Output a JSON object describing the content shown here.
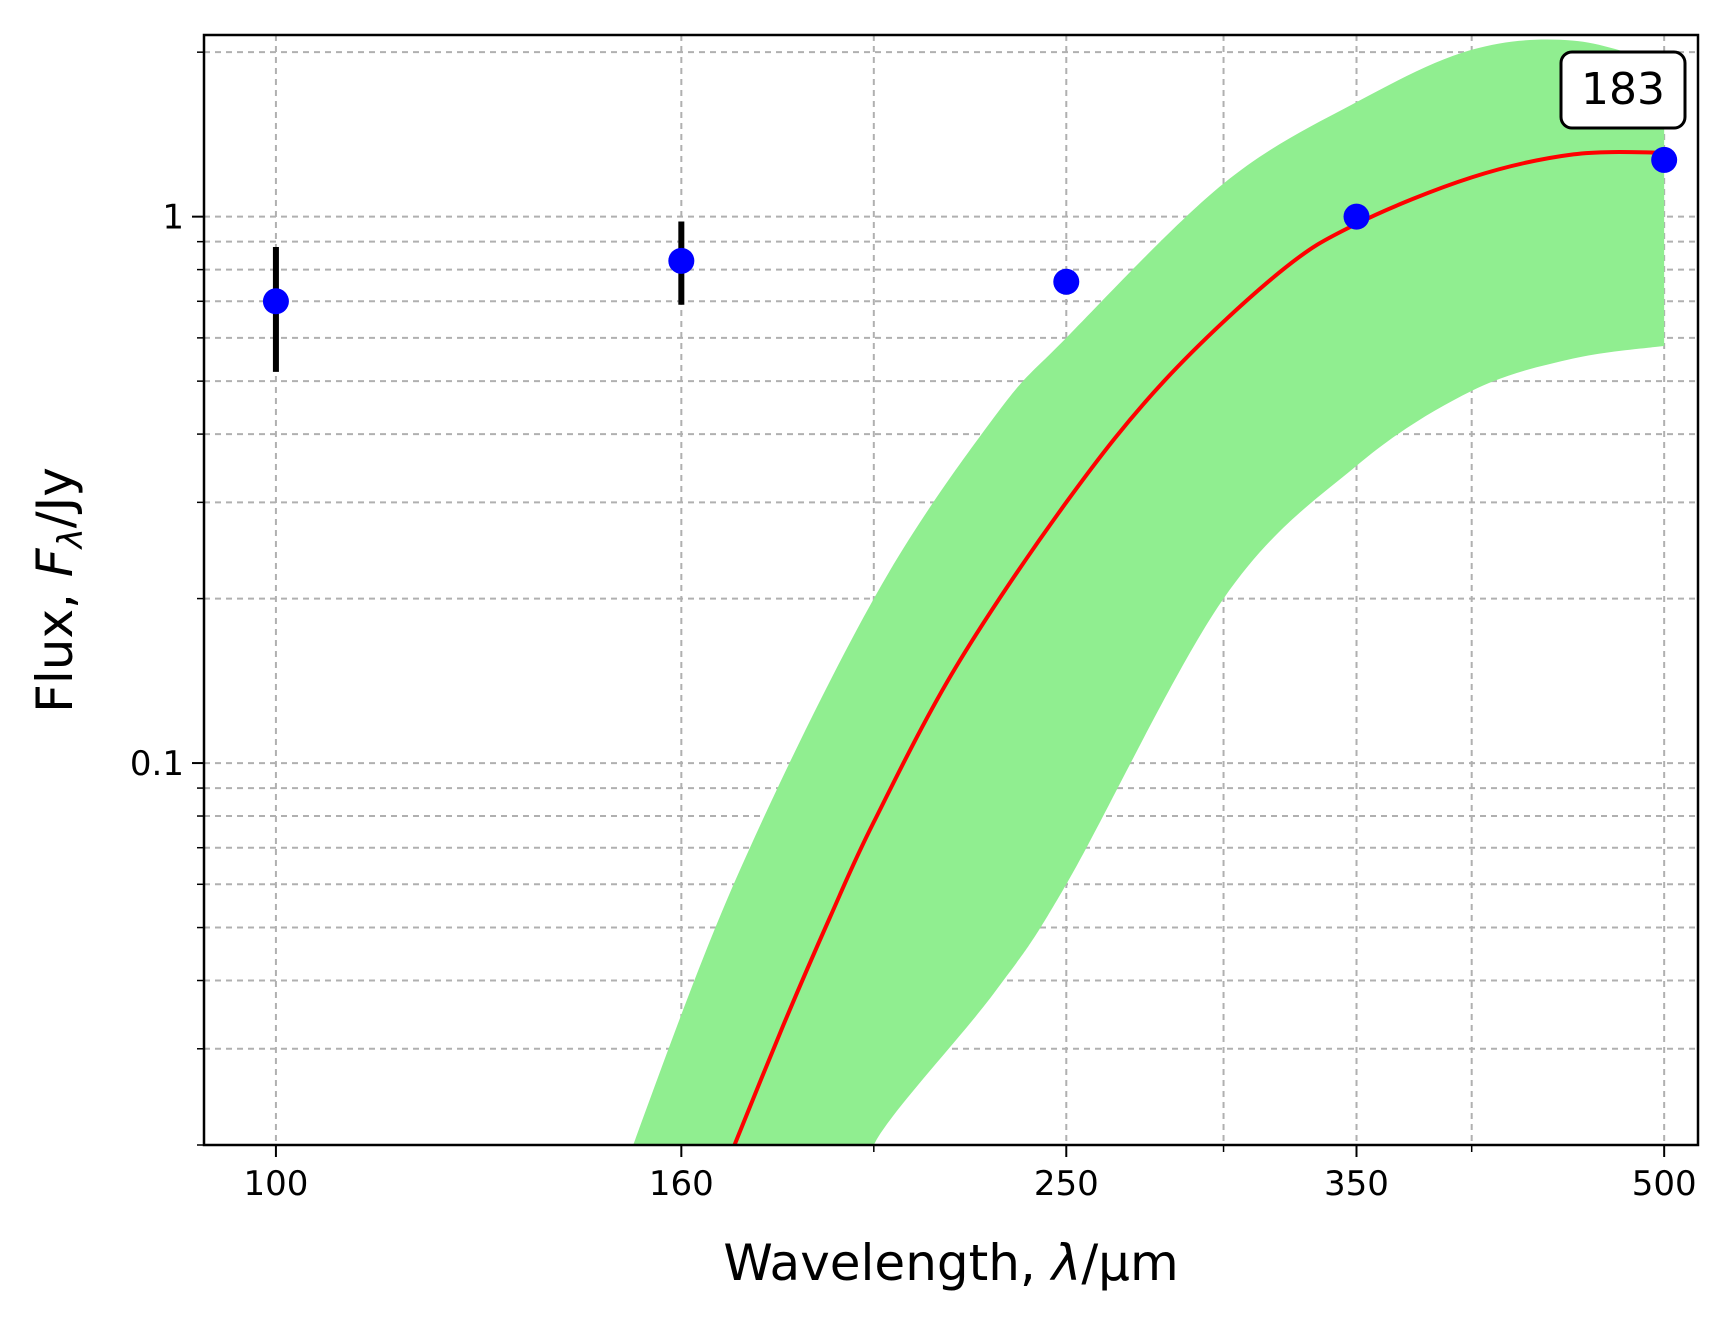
{
  "chart_data": {
    "type": "scatter",
    "xscale": "log",
    "yscale": "log",
    "xlim": [
      92,
      520
    ],
    "ylim": [
      0.02,
      2.15
    ],
    "xticks": [
      {
        "value": 100,
        "label": "100"
      },
      {
        "value": 160,
        "label": "160"
      },
      {
        "value": 250,
        "label": "250"
      },
      {
        "value": 350,
        "label": "350"
      },
      {
        "value": 500,
        "label": "500"
      }
    ],
    "yticks": [
      {
        "value": 0.1,
        "label": "0.1"
      },
      {
        "value": 1,
        "label": "1"
      }
    ],
    "grid": true,
    "xlabel": {
      "main": "Wavelength, ",
      "symbol": "λ",
      "unit": "/µm"
    },
    "ylabel": {
      "main": "Flux, ",
      "symbol": "F",
      "sub": "λ",
      "unit": "/Jy"
    },
    "annotation": "183",
    "points": {
      "color": "#0000ff",
      "x": [
        100,
        160,
        250,
        350,
        500
      ],
      "y": [
        0.7,
        0.83,
        0.76,
        1.0,
        1.27
      ],
      "yerr_low": [
        0.18,
        0.14,
        0.04,
        0.0,
        0.0
      ],
      "yerr_high": [
        0.18,
        0.15,
        0.04,
        0.0,
        0.0
      ]
    },
    "fit": {
      "color": "#ff0000",
      "x": [
        170,
        180,
        190,
        200,
        220,
        250,
        280,
        320,
        350,
        400,
        450,
        500
      ],
      "y": [
        0.02,
        0.033,
        0.052,
        0.078,
        0.15,
        0.3,
        0.5,
        0.79,
        0.97,
        1.18,
        1.3,
        1.31
      ]
    },
    "band": {
      "color": "#90ee90",
      "x": [
        150,
        170,
        200,
        230,
        250,
        300,
        350,
        400,
        450,
        500
      ],
      "upper": [
        0.02,
        0.06,
        0.2,
        0.43,
        0.6,
        1.15,
        1.62,
        2.02,
        2.1,
        1.9
      ],
      "lower": [
        null,
        null,
        0.02,
        0.038,
        0.06,
        0.2,
        0.35,
        0.48,
        0.55,
        0.58
      ],
      "lower_start": 210
    }
  }
}
